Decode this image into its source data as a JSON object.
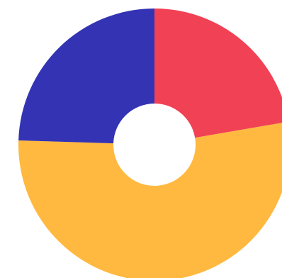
{
  "chart_data": {
    "type": "pie",
    "style": "doughnut",
    "title": "",
    "legend": "none",
    "slices": [
      {
        "value": 22.3,
        "color": "#F14154"
      },
      {
        "value": 53.2,
        "color": "#FFB940"
      },
      {
        "value": 24.5,
        "color": "#3333B4"
      }
    ]
  }
}
